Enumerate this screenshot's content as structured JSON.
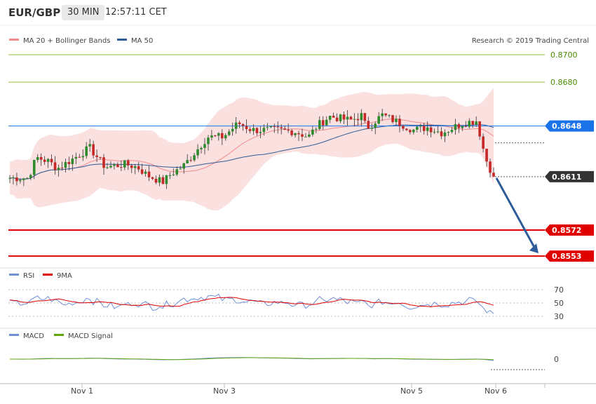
{
  "header": {
    "symbol": "EUR/GBP",
    "timeframe": "30 MIN",
    "time": "12:57:11 CET"
  },
  "credit": "Research © 2019 Trading Central",
  "chart_data": {
    "type": "candlestick",
    "price_panel": {
      "legend": [
        {
          "name": "MA 20 + Bollinger Bands",
          "color": "#f08c8c"
        },
        {
          "name": "MA 50",
          "color": "#2e5c99"
        }
      ],
      "levels": [
        {
          "value": 0.87,
          "label": "0.8700",
          "kind": "target",
          "color": "#8fbf3a"
        },
        {
          "value": 0.868,
          "label": "0.8680",
          "kind": "target",
          "color": "#8fbf3a"
        },
        {
          "value": 0.8648,
          "label": "0.8648",
          "kind": "pivot",
          "color": "#1a73e8"
        },
        {
          "value": 0.8572,
          "label": "0.8572",
          "kind": "support",
          "color": "#e00000"
        },
        {
          "value": 0.8553,
          "label": "0.8553",
          "kind": "support",
          "color": "#e00000"
        }
      ],
      "last_price": {
        "value": 0.8611,
        "label": "0.8611"
      },
      "forecast_arrow": {
        "from": 0.8611,
        "to": 0.8553
      }
    },
    "rsi_panel": {
      "legend": [
        {
          "name": "RSI",
          "color": "#6f8fd8"
        },
        {
          "name": "9MA",
          "color": "#e00000"
        }
      ],
      "ticks": [
        "70",
        "50",
        "30"
      ]
    },
    "macd_panel": {
      "legend": [
        {
          "name": "MACD",
          "color": "#6f8fd8"
        },
        {
          "name": "MACD Signal",
          "color": "#62a80f"
        }
      ],
      "ticks": [
        "0"
      ]
    },
    "x_ticks": [
      "Nov 1",
      "Nov 3",
      "Nov 5",
      "Nov 6"
    ]
  }
}
